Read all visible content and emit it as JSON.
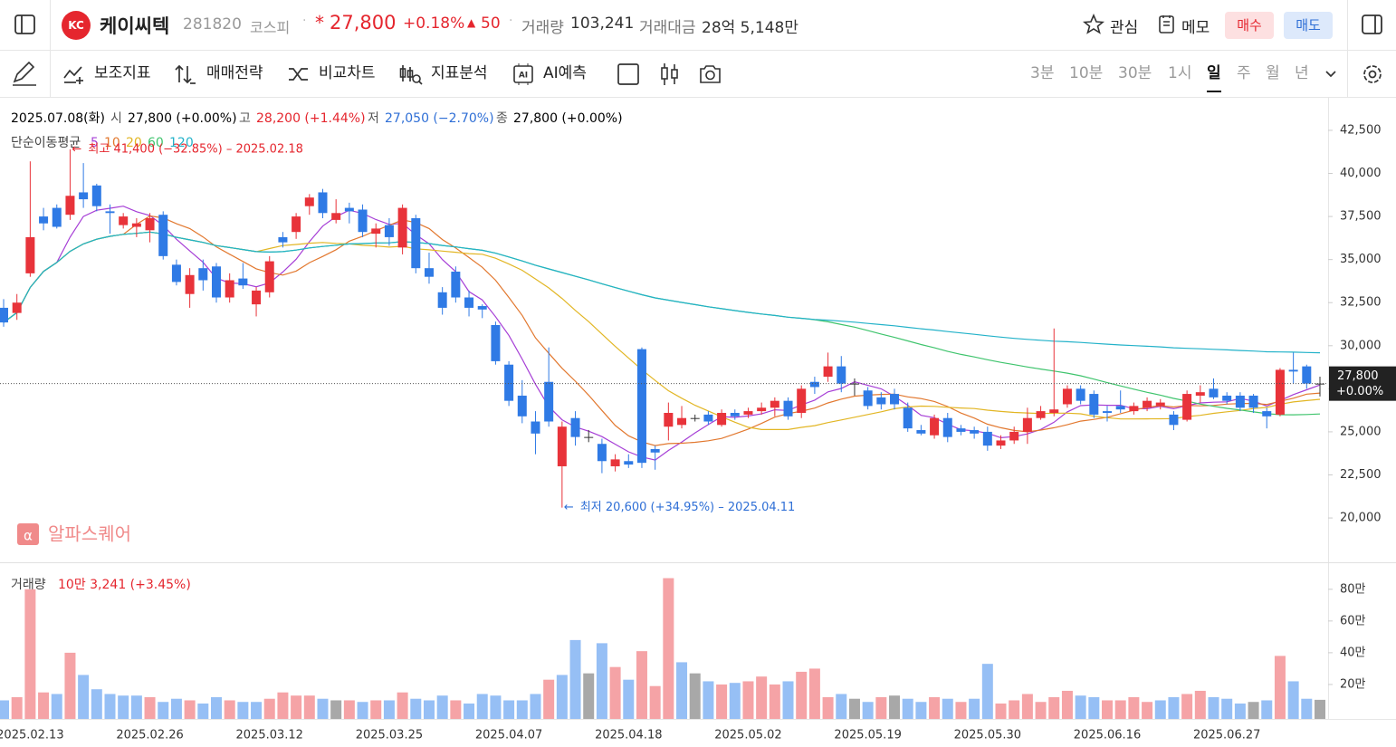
{
  "header": {
    "logo": "KC",
    "name": "케이씨텍",
    "code": "281820",
    "market": "코스피",
    "mark": "*",
    "price": "27,800",
    "change_pct": "+0.18%",
    "change": "50",
    "volume_label": "거래량",
    "volume": "103,241",
    "amount_label": "거래대금",
    "amount": "28억 5,148만",
    "buttons": [
      "관심",
      "메모",
      "매수",
      "매도"
    ]
  },
  "toolbar": {
    "tools": [
      "보조지표",
      "매매전략",
      "비교차트",
      "지표분석",
      "AI예측"
    ],
    "intervals": [
      "3분",
      "10분",
      "30분",
      "1시",
      "일",
      "주",
      "월",
      "년"
    ],
    "active_interval": 4
  },
  "chart_data": {
    "type": "candlestick",
    "info": {
      "date": "2025.07.08(화)",
      "open_label": "시",
      "open": "27,800 (+0.00%)",
      "high_label": "고",
      "high": "28,200 (+1.44%)",
      "low_label": "저",
      "low": "27,050 (−2.70%)",
      "close_label": "종",
      "close": "27,800 (+0.00%)"
    },
    "ma_label": "단순이동평균",
    "ma_periods": [
      5,
      10,
      20,
      60,
      120
    ],
    "ma_colors": [
      "#a63ed6",
      "#e2782f",
      "#e2b624",
      "#3fc46d",
      "#23b2c9"
    ],
    "annotations": {
      "high": "최고 41,400 (−32.85%) – 2025.02.18",
      "low": "최저 20,600 (+34.95%) – 2025.04.11"
    },
    "watermark": "알파스퀘어",
    "last": {
      "price": "27,800",
      "pct": "+0.00%"
    },
    "colors": {
      "up": "#e8333a",
      "down": "#2f7ae5",
      "vol_up": "#f5a3a6",
      "vol_down": "#96bff5",
      "vol_flat": "#a8a8a8"
    },
    "categories": [
      null,
      null,
      "2025.02.13",
      null,
      null,
      null,
      null,
      null,
      null,
      null,
      null,
      "2025.02.26",
      null,
      null,
      null,
      null,
      null,
      null,
      null,
      null,
      "2025.03.12",
      null,
      null,
      null,
      null,
      null,
      null,
      null,
      null,
      "2025.03.25",
      null,
      null,
      null,
      null,
      null,
      null,
      null,
      null,
      "2025.04.07",
      null,
      null,
      null,
      null,
      null,
      null,
      null,
      null,
      "2025.04.18",
      null,
      null,
      null,
      null,
      null,
      null,
      null,
      null,
      "2025.05.02",
      null,
      null,
      null,
      null,
      null,
      null,
      null,
      null,
      "2025.05.19",
      null,
      null,
      null,
      null,
      null,
      null,
      null,
      null,
      "2025.05.30",
      null,
      null,
      null,
      null,
      null,
      null,
      null,
      null,
      "2025.06.16",
      null,
      null,
      null,
      null,
      null,
      null,
      null,
      null,
      "2025.06.27",
      null,
      null,
      null,
      null,
      null,
      null
    ],
    "candles": [
      [
        32200,
        32700,
        31100,
        31350
      ],
      [
        31900,
        33000,
        31500,
        32500
      ],
      [
        34200,
        40700,
        34000,
        36300
      ],
      [
        37500,
        38000,
        36700,
        37100
      ],
      [
        38000,
        38200,
        36800,
        36900
      ],
      [
        37600,
        41400,
        37300,
        38700
      ],
      [
        38900,
        40600,
        38000,
        38500
      ],
      [
        39300,
        39400,
        37800,
        38100
      ],
      [
        37800,
        38200,
        36500,
        37700
      ],
      [
        37000,
        37700,
        36800,
        37500
      ],
      [
        36900,
        37400,
        36300,
        37100
      ],
      [
        36700,
        37700,
        36000,
        37400
      ],
      [
        37600,
        37800,
        35000,
        35200
      ],
      [
        34700,
        35000,
        33500,
        33700
      ],
      [
        33000,
        34500,
        32200,
        34100
      ],
      [
        34500,
        35000,
        33200,
        33800
      ],
      [
        34600,
        34800,
        32500,
        32800
      ],
      [
        32800,
        34200,
        32500,
        33800
      ],
      [
        33900,
        34800,
        33300,
        33500
      ],
      [
        32400,
        33400,
        31700,
        33200
      ],
      [
        33100,
        35200,
        32800,
        34900
      ],
      [
        36300,
        36600,
        35700,
        36000
      ],
      [
        36600,
        37700,
        36200,
        37500
      ],
      [
        38100,
        38800,
        37600,
        38600
      ],
      [
        38900,
        39100,
        37400,
        37700
      ],
      [
        37300,
        38500,
        37100,
        37700
      ],
      [
        38000,
        38300,
        37100,
        37800
      ],
      [
        37900,
        38200,
        36300,
        36600
      ],
      [
        36500,
        37100,
        35700,
        36800
      ],
      [
        37000,
        37400,
        35800,
        36300
      ],
      [
        35700,
        38200,
        35300,
        38000
      ],
      [
        37400,
        37600,
        34200,
        34500
      ],
      [
        34500,
        35400,
        33600,
        34000
      ],
      [
        33100,
        33400,
        31800,
        32200
      ],
      [
        34300,
        34600,
        32500,
        32800
      ],
      [
        32800,
        33200,
        31700,
        32200
      ],
      [
        32300,
        32400,
        31600,
        32100
      ],
      [
        31200,
        31400,
        28900,
        29100
      ],
      [
        28900,
        29100,
        26500,
        26800
      ],
      [
        27100,
        28000,
        25500,
        25900
      ],
      [
        25600,
        26200,
        23700,
        24900
      ],
      [
        27900,
        29900,
        25300,
        25600
      ],
      [
        23000,
        25600,
        20600,
        25300
      ],
      [
        25800,
        26200,
        24200,
        24700
      ],
      [
        24700,
        25100,
        24400,
        24700
      ],
      [
        24300,
        24600,
        22600,
        23300
      ],
      [
        23000,
        23700,
        22700,
        23400
      ],
      [
        23300,
        23700,
        22900,
        23100
      ],
      [
        29800,
        29900,
        22900,
        23200
      ],
      [
        24000,
        24200,
        22800,
        23800
      ],
      [
        25300,
        26700,
        24500,
        26100
      ],
      [
        25400,
        26500,
        25200,
        25800
      ],
      [
        25800,
        26000,
        25600,
        25800
      ],
      [
        26000,
        26200,
        25400,
        25600
      ],
      [
        25400,
        26300,
        25300,
        26100
      ],
      [
        26100,
        26300,
        25700,
        25900
      ],
      [
        26000,
        26400,
        25800,
        26200
      ],
      [
        26200,
        26700,
        26000,
        26400
      ],
      [
        26400,
        27000,
        25900,
        26800
      ],
      [
        26800,
        27000,
        25700,
        25900
      ],
      [
        26100,
        27700,
        25800,
        27500
      ],
      [
        27900,
        28200,
        27200,
        27600
      ],
      [
        28200,
        29600,
        27900,
        28800
      ],
      [
        28800,
        29400,
        27300,
        27800
      ],
      [
        27800,
        28100,
        27100,
        27800
      ],
      [
        27400,
        27600,
        26300,
        26500
      ],
      [
        27000,
        27300,
        26300,
        26600
      ],
      [
        27200,
        27500,
        26300,
        26600
      ],
      [
        26400,
        26700,
        25000,
        25200
      ],
      [
        25100,
        25400,
        24800,
        24900
      ],
      [
        24800,
        26000,
        24600,
        25800
      ],
      [
        25800,
        26100,
        24400,
        24700
      ],
      [
        25200,
        25400,
        24800,
        25000
      ],
      [
        25100,
        25300,
        24600,
        24900
      ],
      [
        25000,
        25300,
        23900,
        24200
      ],
      [
        24200,
        24800,
        24000,
        24500
      ],
      [
        24500,
        25300,
        24300,
        25000
      ],
      [
        25000,
        26400,
        24300,
        25800
      ],
      [
        25800,
        26500,
        25700,
        26200
      ],
      [
        26100,
        31000,
        25900,
        26300
      ],
      [
        26600,
        27700,
        26400,
        27500
      ],
      [
        27500,
        27700,
        26600,
        26800
      ],
      [
        27200,
        27400,
        25800,
        26000
      ],
      [
        26200,
        26500,
        25600,
        26100
      ],
      [
        26500,
        27400,
        26100,
        26300
      ],
      [
        26200,
        26700,
        26000,
        26500
      ],
      [
        26400,
        27000,
        26200,
        26800
      ],
      [
        26500,
        26900,
        26300,
        26700
      ],
      [
        26000,
        26200,
        25100,
        25400
      ],
      [
        25700,
        27400,
        25600,
        27200
      ],
      [
        27100,
        27700,
        26700,
        27300
      ],
      [
        27500,
        28100,
        26900,
        27000
      ],
      [
        27100,
        27300,
        26600,
        26800
      ],
      [
        27100,
        27300,
        26200,
        26400
      ],
      [
        27100,
        27200,
        26100,
        26400
      ],
      [
        26200,
        26400,
        25200,
        25900
      ],
      [
        26000,
        28700,
        25900,
        28600
      ],
      [
        28600,
        29600,
        27800,
        28500
      ],
      [
        28800,
        28900,
        27500,
        27800
      ],
      [
        27800,
        28200,
        27050,
        27800
      ]
    ],
    "ylim": [
      17480,
      44390
    ],
    "yticks": [
      {
        "value": 20000,
        "label": "20,000"
      },
      {
        "value": 22500,
        "label": "22,500"
      },
      {
        "value": 25000,
        "label": "25,000"
      },
      {
        "value": 27500,
        "label": "27,500"
      },
      {
        "value": 30000,
        "label": "30,000"
      },
      {
        "value": 32500,
        "label": "32,500"
      },
      {
        "value": 35000,
        "label": "35,000"
      },
      {
        "value": 37500,
        "label": "37,500"
      },
      {
        "value": 40000,
        "label": "40,000"
      },
      {
        "value": 42500,
        "label": "42,500"
      }
    ],
    "volume": {
      "label": "거래량",
      "value_label": "10만 3,241 (+3.45%)",
      "values": [
        10,
        12,
        80,
        15,
        14,
        40,
        26,
        17,
        14,
        13,
        13,
        12,
        9,
        11,
        10,
        8,
        12,
        10,
        9,
        9,
        11,
        15,
        13,
        13,
        11,
        10,
        10,
        9,
        10,
        10,
        15,
        11,
        10,
        13,
        10,
        8,
        14,
        13,
        10,
        10,
        14,
        23,
        26,
        48,
        27,
        46,
        31,
        23,
        41,
        19,
        87,
        34,
        27,
        22,
        20,
        21,
        22,
        25,
        20,
        22,
        28,
        30,
        12,
        14,
        11,
        9,
        12,
        13,
        11,
        9,
        12,
        11,
        9,
        11,
        33,
        8,
        10,
        14,
        9,
        12,
        16,
        13,
        12,
        10,
        10,
        12,
        9,
        10,
        12,
        14,
        16,
        12,
        11,
        8,
        9,
        10,
        38,
        22,
        11,
        10.3241
      ],
      "ylim": [
        0,
        93
      ],
      "yticks": [
        {
          "value": 20,
          "label": "20만"
        },
        {
          "value": 40,
          "label": "40만"
        },
        {
          "value": 60,
          "label": "60만"
        },
        {
          "value": 80,
          "label": "80만"
        }
      ]
    }
  }
}
